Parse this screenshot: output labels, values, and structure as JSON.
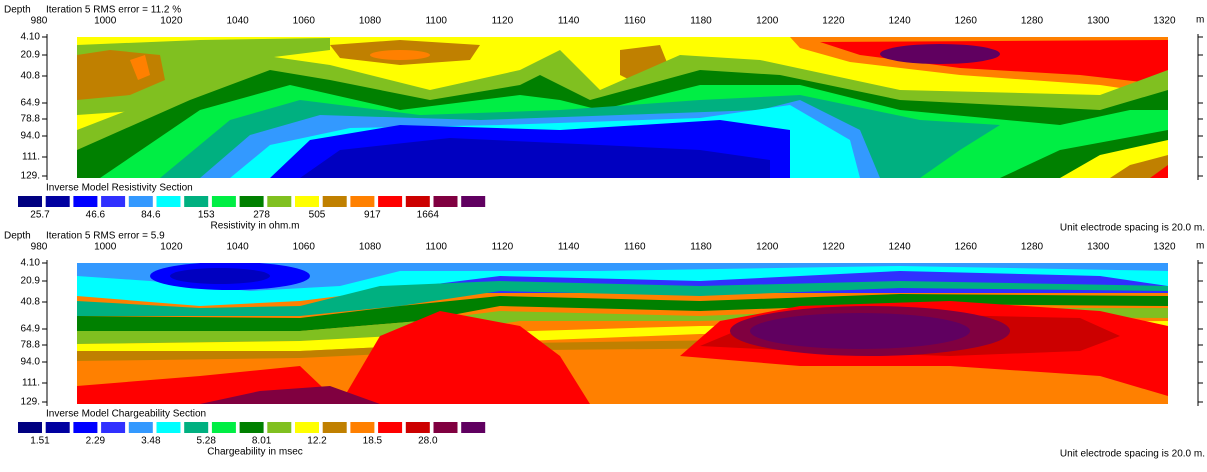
{
  "panels": [
    {
      "header": "Depth",
      "iteration": "Iteration 5 RMS error = 11.2 %",
      "x_unit": "m",
      "x_ticks": [
        "980",
        "1000",
        "1020",
        "1040",
        "1060",
        "1080",
        "1100",
        "1120",
        "1140",
        "1160",
        "1180",
        "1200",
        "1220",
        "1240",
        "1260",
        "1280",
        "1300",
        "1320"
      ],
      "depth_ticks": [
        "4.10",
        "20.9",
        "40.8",
        "64.9",
        "78.8",
        "94.0",
        "111.",
        "129."
      ],
      "section_title": "Inverse Model Resistivity Section",
      "legend_labels": [
        "25.7",
        "46.6",
        "84.6",
        "153",
        "278",
        "505",
        "917",
        "1664"
      ],
      "legend_caption": "Resistivity in ohm.m",
      "spacing_note": "Unit electrode spacing is 20.0 m."
    },
    {
      "header": "Depth",
      "iteration": "Iteration 5 RMS error = 5.9",
      "x_unit": "m",
      "x_ticks": [
        "980",
        "1000",
        "1020",
        "1040",
        "1060",
        "1080",
        "1100",
        "1120",
        "1140",
        "1160",
        "1180",
        "1200",
        "1220",
        "1240",
        "1260",
        "1280",
        "1300",
        "1320"
      ],
      "depth_ticks": [
        "4.10",
        "20.9",
        "40.8",
        "64.9",
        "78.8",
        "94.0",
        "111.",
        "129."
      ],
      "section_title": "Inverse Model Chargeability Section",
      "legend_labels": [
        "1.51",
        "2.29",
        "3.48",
        "5.28",
        "8.01",
        "12.2",
        "18.5",
        "28.0"
      ],
      "legend_caption": "Chargeability in msec",
      "spacing_note": "Unit electrode spacing is 20.0 m."
    }
  ]
}
